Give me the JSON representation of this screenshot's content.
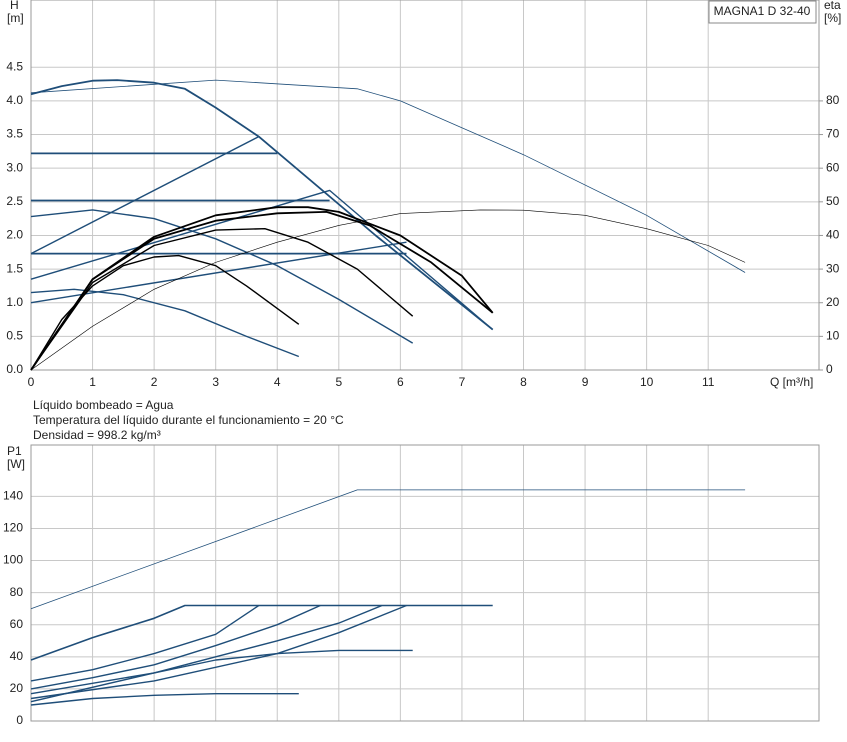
{
  "chart_data": [
    {
      "type": "line",
      "title": "MAGNA1 D 32-40",
      "ylabel": [
        "H",
        "[m]"
      ],
      "y2label": [
        "eta",
        "[%]"
      ],
      "xlabel": "Q [m³/h]",
      "annotations": [
        "Líquido bombeado = Agua",
        "Temperatura del líquido durante el funcionamiento = 20 °C",
        "Densidad = 998.2 kg/m³"
      ],
      "xlim": [
        0,
        12.8
      ],
      "xticks": [
        0,
        1,
        2,
        3,
        4,
        5,
        6,
        7,
        8,
        9,
        10,
        11
      ],
      "ylim": [
        0,
        5.5
      ],
      "yticks": [
        {
          "value": 0,
          "label": "0.0"
        },
        0.5,
        {
          "value": 1,
          "label": "1.0"
        },
        1.5,
        {
          "value": 2,
          "label": "2.0"
        },
        2.5,
        {
          "value": 3,
          "label": "3.0"
        },
        3.5,
        {
          "value": 4,
          "label": "4.0"
        },
        4.5
      ],
      "y2lim": [
        0,
        110
      ],
      "y2ticks": [
        0,
        10,
        20,
        30,
        40,
        50,
        60,
        70,
        80
      ],
      "grid": true,
      "series": [
        {
          "color": "#1f4e79",
          "width": 1.8,
          "x": [
            0,
            0.5,
            1,
            1.4,
            2,
            2.5,
            3,
            3.7,
            5.6,
            7.5
          ],
          "values": [
            4.1,
            4.22,
            4.3,
            4.31,
            4.27,
            4.18,
            3.9,
            3.47,
            2.0,
            0.6
          ]
        },
        {
          "color": "#1f4e79",
          "width": 1.8,
          "x": [
            0,
            4
          ],
          "values": [
            3.22,
            3.22
          ]
        },
        {
          "color": "#1f4e79",
          "width": 1.8,
          "x": [
            0,
            4.85
          ],
          "values": [
            2.52,
            2.52
          ]
        },
        {
          "color": "#1f4e79",
          "width": 1.8,
          "x": [
            0,
            6.1
          ],
          "values": [
            1.73,
            1.73
          ]
        },
        {
          "color": "#1f4e79",
          "width": 1.4,
          "x": [
            0,
            3.7
          ],
          "values": [
            1.73,
            3.47
          ]
        },
        {
          "color": "#1f4e79",
          "width": 1.4,
          "x": [
            0,
            4.85,
            7.5
          ],
          "values": [
            1.35,
            2.67,
            0.6
          ]
        },
        {
          "color": "#1f4e79",
          "width": 1.4,
          "x": [
            0,
            6.1
          ],
          "values": [
            1.0,
            1.9
          ]
        },
        {
          "color": "#1f4e79",
          "width": 1.4,
          "x": [
            0,
            1,
            2,
            3,
            4,
            5,
            6.2
          ],
          "values": [
            2.28,
            2.38,
            2.25,
            1.95,
            1.55,
            1.05,
            0.4
          ]
        },
        {
          "color": "#1f4e79",
          "width": 1.4,
          "x": [
            0,
            0.7,
            1.5,
            2.5,
            3.5,
            4.35
          ],
          "values": [
            1.15,
            1.2,
            1.12,
            0.88,
            0.5,
            0.2
          ]
        },
        {
          "color": "#000000",
          "width": 1.4,
          "x": [
            0,
            0.5,
            1,
            1.5,
            2,
            2.4,
            3,
            3.5,
            4.35
          ],
          "values": [
            0,
            0.75,
            1.25,
            1.55,
            1.68,
            1.7,
            1.55,
            1.25,
            0.68
          ]
        },
        {
          "color": "#000000",
          "width": 1.4,
          "x": [
            0,
            1,
            2,
            3,
            3.8,
            4.5,
            5.3,
            6.2
          ],
          "values": [
            0,
            1.3,
            1.85,
            2.08,
            2.1,
            1.9,
            1.5,
            0.8
          ]
        },
        {
          "color": "#000000",
          "width": 1.8,
          "x": [
            0,
            1,
            2,
            3,
            4,
            4.8,
            5.5,
            6.5,
            7.5
          ],
          "values": [
            0,
            1.35,
            1.95,
            2.22,
            2.33,
            2.35,
            2.15,
            1.6,
            0.85
          ]
        },
        {
          "color": "#000000",
          "width": 1.8,
          "x": [
            0,
            1,
            2,
            3,
            4,
            4.5,
            5,
            6,
            7,
            7.5
          ],
          "values": [
            0,
            1.35,
            1.98,
            2.3,
            2.42,
            2.42,
            2.35,
            2.0,
            1.4,
            0.85
          ]
        },
        {
          "color": "#1f4e79",
          "width": 0.8,
          "x": [
            0,
            3,
            5.3,
            6,
            8,
            10,
            11.6
          ],
          "values": [
            4.12,
            4.31,
            4.18,
            4.0,
            3.2,
            2.3,
            1.45
          ]
        },
        {
          "color": "#000000",
          "width": 0.6,
          "axis": "y2",
          "x": [
            0,
            1,
            2,
            3,
            4,
            5,
            6,
            7.3,
            8,
            9,
            10,
            11,
            11.6
          ],
          "values": [
            0,
            13,
            24,
            32,
            38,
            43,
            46.5,
            47.6,
            47.5,
            46,
            42,
            37,
            32
          ]
        }
      ]
    },
    {
      "type": "line",
      "ylabel": [
        "P1",
        "[W]"
      ],
      "xlim": [
        0,
        12.8
      ],
      "ylim": [
        0,
        172
      ],
      "yticks": [
        0,
        20,
        40,
        60,
        80,
        100,
        120,
        140
      ],
      "grid": true,
      "series": [
        {
          "color": "#1f4e79",
          "width": 0.8,
          "x": [
            0,
            5.3,
            11.6
          ],
          "values": [
            70,
            144,
            144
          ]
        },
        {
          "color": "#1f4e79",
          "width": 1.6,
          "x": [
            0,
            1,
            2,
            2.5,
            7.5
          ],
          "values": [
            38,
            52,
            64,
            72,
            72
          ]
        },
        {
          "color": "#1f4e79",
          "width": 1.4,
          "x": [
            0,
            1,
            2,
            3,
            3.7
          ],
          "values": [
            25,
            32,
            42,
            54,
            72
          ]
        },
        {
          "color": "#1f4e79",
          "width": 1.4,
          "x": [
            0,
            1,
            2,
            3,
            4,
            4.7
          ],
          "values": [
            20,
            27,
            35,
            47,
            60,
            72
          ]
        },
        {
          "color": "#1f4e79",
          "width": 1.4,
          "x": [
            0,
            2,
            3,
            4,
            5,
            5.7
          ],
          "values": [
            17,
            30,
            40,
            50,
            61,
            72
          ]
        },
        {
          "color": "#1f4e79",
          "width": 1.4,
          "x": [
            0,
            2,
            4,
            5,
            6.1
          ],
          "values": [
            14,
            25,
            42,
            55,
            72
          ]
        },
        {
          "color": "#1f4e79",
          "width": 1.4,
          "x": [
            0,
            2,
            3,
            4,
            5,
            6.2
          ],
          "values": [
            12,
            30,
            38,
            42,
            44,
            44
          ]
        },
        {
          "color": "#1f4e79",
          "width": 1.4,
          "x": [
            0,
            1,
            2,
            3,
            4.35
          ],
          "values": [
            10,
            14,
            16,
            17,
            17
          ]
        }
      ]
    }
  ]
}
